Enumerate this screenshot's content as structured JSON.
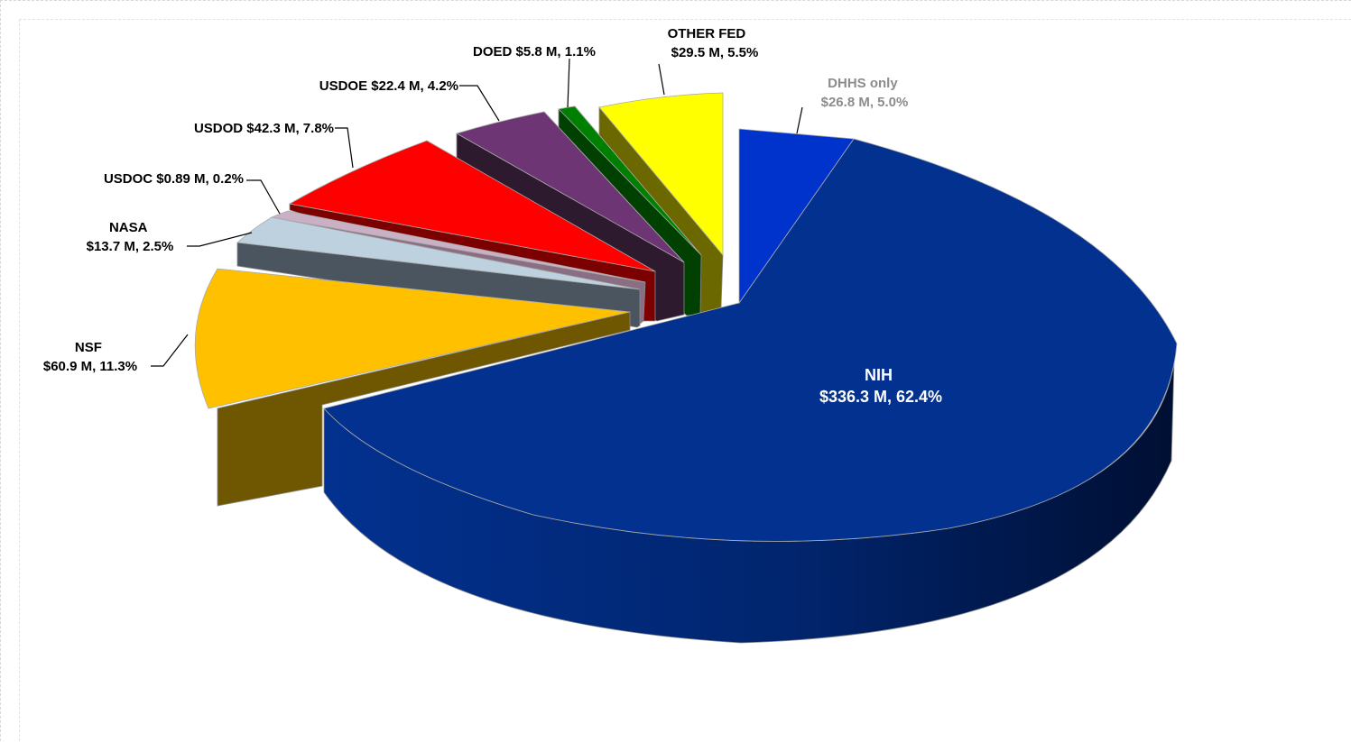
{
  "chart_data": {
    "type": "pie",
    "style": "3d-exploded",
    "slices": [
      {
        "name": "NIH",
        "label_line1": "NIH",
        "label_line2": "$336.3 M, 62.4%",
        "value": 336.3,
        "percent": 62.4,
        "color": "#02318f",
        "label_color": "#ffffff"
      },
      {
        "name": "NSF",
        "label_line1": "NSF",
        "label_line2": "$60.9 M, 11.3%",
        "value": 60.9,
        "percent": 11.3,
        "color": "#ffc000",
        "label_color": "#000000"
      },
      {
        "name": "NASA",
        "label_line1": "NASA",
        "label_line2": "$13.7 M, 2.5%",
        "value": 13.7,
        "percent": 2.5,
        "color": "#bdd1df",
        "label_color": "#000000"
      },
      {
        "name": "USDOC",
        "label_line1": "USDOC $0.89 M, 0.2%",
        "label_line2": "",
        "value": 0.89,
        "percent": 0.2,
        "color": "#c9b0c4",
        "label_color": "#000000"
      },
      {
        "name": "USDOD",
        "label_line1": "USDOD $42.3 M, 7.8%",
        "label_line2": "",
        "value": 42.3,
        "percent": 7.8,
        "color": "#ff0000",
        "label_color": "#000000"
      },
      {
        "name": "USDOE",
        "label_line1": "USDOE $22.4 M, 4.2%",
        "label_line2": "",
        "value": 22.4,
        "percent": 4.2,
        "color": "#6d3573",
        "label_color": "#000000"
      },
      {
        "name": "DOED",
        "label_line1": "DOED $5.8 M, 1.1%",
        "label_line2": "",
        "value": 5.8,
        "percent": 1.1,
        "color": "#008000",
        "label_color": "#000000"
      },
      {
        "name": "OTHER FED",
        "label_line1": "OTHER FED",
        "label_line2": "$29.5 M, 5.5%",
        "value": 29.5,
        "percent": 5.5,
        "color": "#ffff00",
        "label_color": "#000000"
      },
      {
        "name": "DHHS only",
        "label_line1": "DHHS only",
        "label_line2": "$26.8 M, 5.0%",
        "value": 26.8,
        "percent": 5.0,
        "color": "#0033cc",
        "label_color": "#8c8c8c"
      }
    ]
  }
}
